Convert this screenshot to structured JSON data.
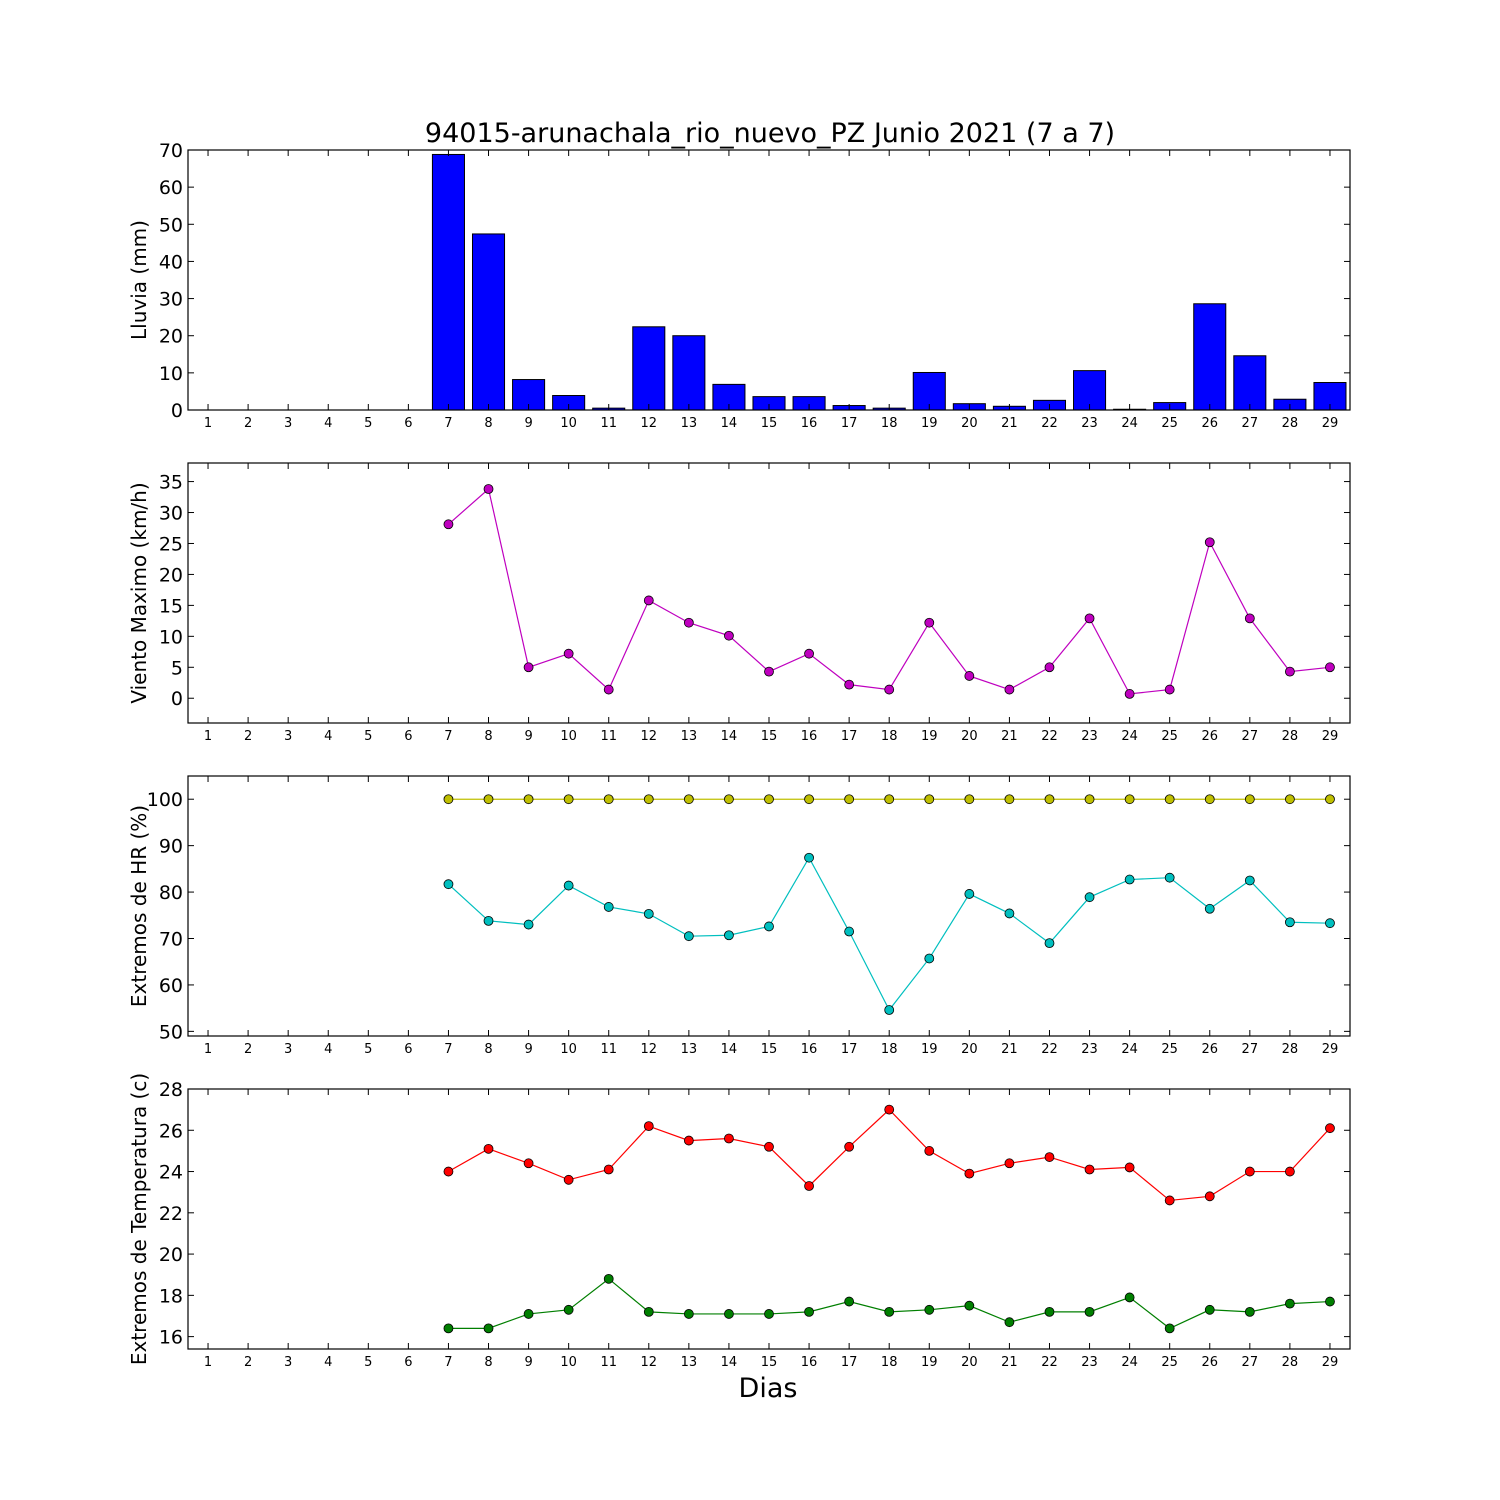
{
  "title": "94015-arunachala_rio_nuevo_PZ Junio 2021  (7 a 7)",
  "xlabel": "Dias",
  "days": [
    1,
    2,
    3,
    4,
    5,
    6,
    7,
    8,
    9,
    10,
    11,
    12,
    13,
    14,
    15,
    16,
    17,
    18,
    19,
    20,
    21,
    22,
    23,
    24,
    25,
    26,
    27,
    28,
    29
  ],
  "chart_data": [
    {
      "type": "bar",
      "ylabel": "Lluvia (mm)",
      "ylim": [
        0,
        70
      ],
      "yticks": [
        0,
        10,
        20,
        30,
        40,
        50,
        60,
        70
      ],
      "grid": false,
      "series": [
        {
          "color": "#0000ff",
          "x": [
            7,
            8,
            9,
            10,
            11,
            12,
            13,
            14,
            15,
            16,
            17,
            18,
            19,
            20,
            21,
            22,
            23,
            24,
            25,
            26,
            27,
            28,
            29
          ],
          "values": [
            68.8,
            47.4,
            8.2,
            3.9,
            0.5,
            22.4,
            20.0,
            6.9,
            3.6,
            3.6,
            1.2,
            0.5,
            10.1,
            1.7,
            1.0,
            2.6,
            10.6,
            0.2,
            2.0,
            28.6,
            14.6,
            2.9,
            7.4
          ]
        }
      ]
    },
    {
      "type": "line",
      "ylabel": "Viento Maximo (km/h)",
      "ylim": [
        -4,
        38
      ],
      "yticks": [
        0,
        5,
        10,
        15,
        20,
        25,
        30,
        35
      ],
      "grid": false,
      "series": [
        {
          "color": "#bf00bf",
          "x": [
            7,
            8,
            9,
            10,
            11,
            12,
            13,
            14,
            15,
            16,
            17,
            18,
            19,
            20,
            21,
            22,
            23,
            24,
            25,
            26,
            27,
            28,
            29
          ],
          "values": [
            28.1,
            33.8,
            5.0,
            7.2,
            1.4,
            15.8,
            12.2,
            10.1,
            4.3,
            7.2,
            2.2,
            1.4,
            12.2,
            3.6,
            1.4,
            5.0,
            12.9,
            0.7,
            1.4,
            25.2,
            12.9,
            4.3,
            5.0
          ]
        }
      ]
    },
    {
      "type": "line",
      "ylabel": "Extremos de HR (%)",
      "ylim": [
        49,
        105
      ],
      "yticks": [
        50,
        60,
        70,
        80,
        90,
        100
      ],
      "grid": false,
      "series": [
        {
          "color": "#bfbf00",
          "x": [
            7,
            8,
            9,
            10,
            11,
            12,
            13,
            14,
            15,
            16,
            17,
            18,
            19,
            20,
            21,
            22,
            23,
            24,
            25,
            26,
            27,
            28,
            29
          ],
          "values": [
            100,
            100,
            100,
            100,
            100,
            100,
            100,
            100,
            100,
            100,
            100,
            100,
            100,
            100,
            100,
            100,
            100,
            100,
            100,
            100,
            100,
            100,
            100
          ]
        },
        {
          "color": "#00bfbf",
          "x": [
            7,
            8,
            9,
            10,
            11,
            12,
            13,
            14,
            15,
            16,
            17,
            18,
            19,
            20,
            21,
            22,
            23,
            24,
            25,
            26,
            27,
            28,
            29
          ],
          "values": [
            81.7,
            73.8,
            73.0,
            81.4,
            76.8,
            75.3,
            70.5,
            70.7,
            72.6,
            87.4,
            71.5,
            54.6,
            65.7,
            79.6,
            75.4,
            69.0,
            78.9,
            82.7,
            83.1,
            76.4,
            82.5,
            73.5,
            73.3
          ]
        }
      ]
    },
    {
      "type": "line",
      "ylabel": "Extremos de Temperatura (c)",
      "ylim": [
        15.4,
        28
      ],
      "yticks": [
        16,
        18,
        20,
        22,
        24,
        26,
        28
      ],
      "grid": false,
      "series": [
        {
          "color": "#ff0000",
          "x": [
            7,
            8,
            9,
            10,
            11,
            12,
            13,
            14,
            15,
            16,
            17,
            18,
            19,
            20,
            21,
            22,
            23,
            24,
            25,
            26,
            27,
            28,
            29
          ],
          "values": [
            24.0,
            25.1,
            24.4,
            23.6,
            24.1,
            26.2,
            25.5,
            25.6,
            25.2,
            23.3,
            25.2,
            27.0,
            25.0,
            23.9,
            24.4,
            24.7,
            24.1,
            24.2,
            22.6,
            22.8,
            24.0,
            24.0,
            26.1
          ]
        },
        {
          "color": "#007f00",
          "x": [
            7,
            8,
            9,
            10,
            11,
            12,
            13,
            14,
            15,
            16,
            17,
            18,
            19,
            20,
            21,
            22,
            23,
            24,
            25,
            26,
            27,
            28,
            29
          ],
          "values": [
            16.4,
            16.4,
            17.1,
            17.3,
            18.8,
            17.2,
            17.1,
            17.1,
            17.1,
            17.2,
            17.7,
            17.2,
            17.3,
            17.5,
            16.7,
            17.2,
            17.2,
            17.9,
            16.4,
            17.3,
            17.2,
            17.6,
            17.7
          ]
        }
      ]
    }
  ]
}
